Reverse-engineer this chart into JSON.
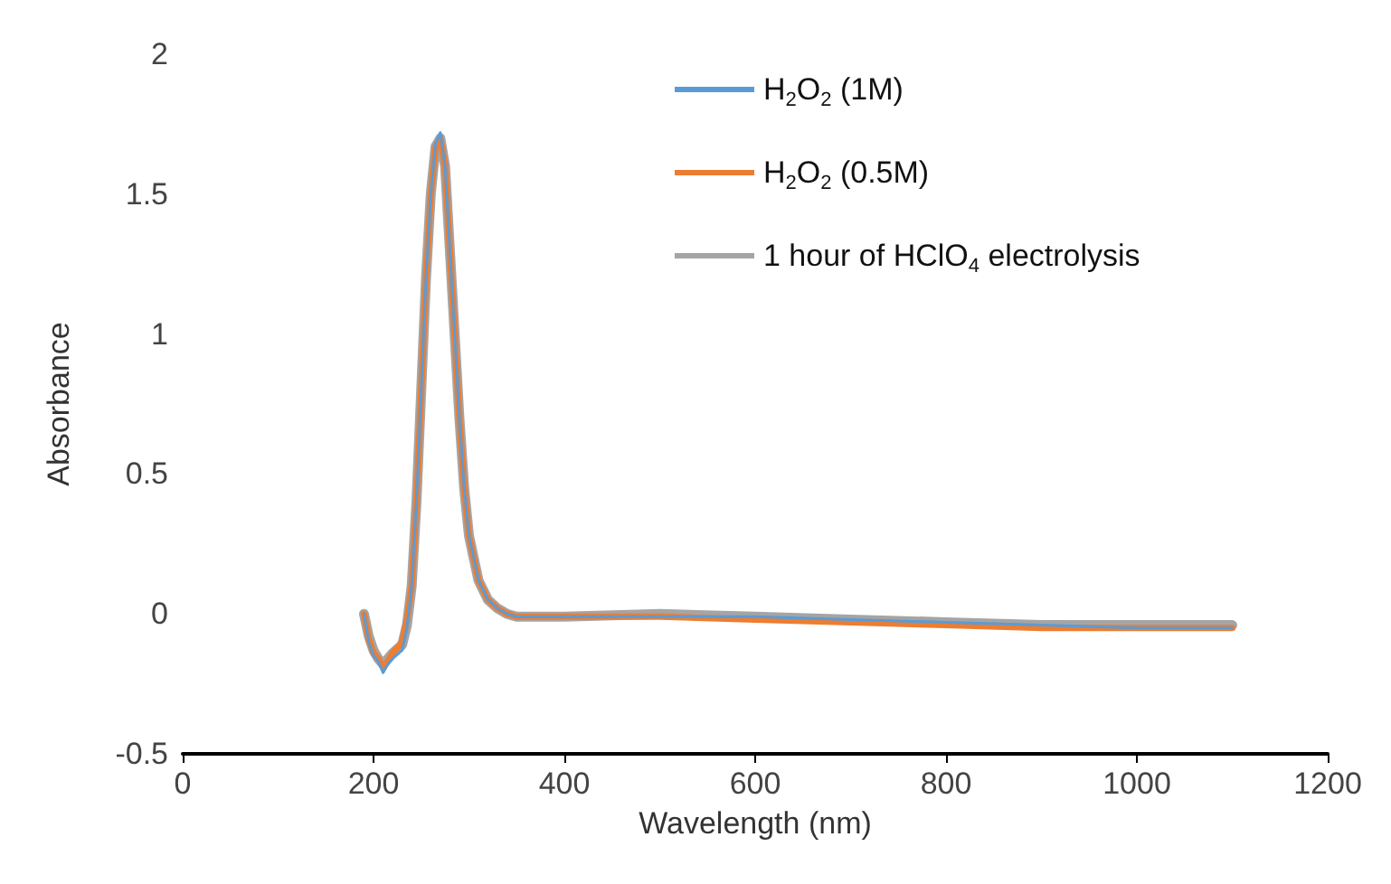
{
  "chart_data": {
    "type": "line",
    "xlabel": "Wavelength (nm)",
    "ylabel": "Absorbance",
    "xlim": [
      0,
      1200
    ],
    "xticks": [
      0,
      200,
      400,
      600,
      800,
      1000,
      1200
    ],
    "ylim": [
      -0.5,
      2
    ],
    "yticks": [
      -0.5,
      0,
      0.5,
      1,
      1.5,
      2
    ],
    "grid": false,
    "legend": "top right",
    "marker": "none",
    "line_style": "solid",
    "x": [
      190,
      195,
      200,
      205,
      210,
      215,
      220,
      230,
      235,
      240,
      245,
      250,
      255,
      260,
      265,
      270,
      275,
      280,
      285,
      290,
      295,
      300,
      310,
      320,
      330,
      340,
      350,
      400,
      500,
      600,
      700,
      800,
      900,
      1000,
      1100
    ],
    "series": [
      {
        "name": "H$_{2}$O$_{2}$ (1M)",
        "color": "#5b9bd5",
        "values": [
          0,
          -0.1,
          -0.15,
          -0.17,
          -0.21,
          -0.18,
          -0.16,
          -0.13,
          -0.05,
          0.1,
          0.4,
          0.8,
          1.2,
          1.5,
          1.68,
          1.72,
          1.6,
          1.3,
          1.0,
          0.7,
          0.45,
          0.28,
          0.12,
          0.05,
          0.02,
          0,
          -0.01,
          -0.01,
          -0.01,
          -0.01,
          -0.02,
          -0.03,
          -0.04,
          -0.05,
          -0.05
        ]
      },
      {
        "name": "H$_{2}$O$_{2}$ (0.5M)",
        "color": "#ed7d31",
        "values": [
          0,
          -0.09,
          -0.14,
          -0.16,
          -0.19,
          -0.17,
          -0.14,
          -0.1,
          -0.02,
          0.1,
          0.4,
          0.8,
          1.2,
          1.5,
          1.67,
          1.7,
          1.6,
          1.3,
          1.0,
          0.7,
          0.45,
          0.28,
          0.12,
          0.05,
          0.02,
          0,
          -0.01,
          -0.01,
          -0.01,
          -0.02,
          -0.03,
          -0.04,
          -0.05,
          -0.05,
          -0.05
        ]
      },
      {
        "name": "1 hour of HClO$_{4}$ electrolysis",
        "color": "#a5a5a5",
        "values": [
          0,
          -0.08,
          -0.13,
          -0.16,
          -0.18,
          -0.16,
          -0.14,
          -0.11,
          -0.04,
          0.1,
          0.4,
          0.8,
          1.2,
          1.5,
          1.67,
          1.7,
          1.6,
          1.3,
          1.0,
          0.7,
          0.45,
          0.28,
          0.12,
          0.05,
          0.02,
          0,
          -0.01,
          -0.01,
          0,
          -0.01,
          -0.02,
          -0.03,
          -0.04,
          -0.04,
          -0.04
        ]
      }
    ]
  }
}
